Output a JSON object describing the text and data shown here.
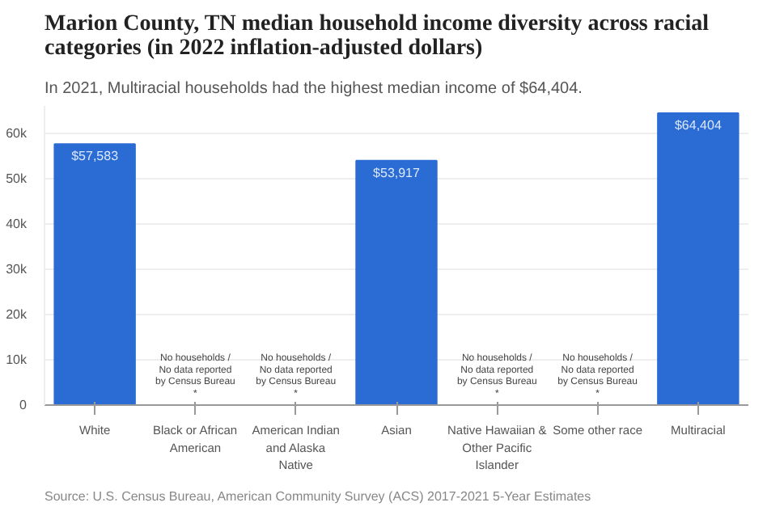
{
  "chart_data": {
    "type": "bar",
    "title": "Marion County, TN median household income diversity across racial categories (in 2022 inflation-adjusted dollars)",
    "subtitle": "In 2021, Multiracial households had the highest median income of $64,404.",
    "categories": [
      "White",
      "Black or African American",
      "American Indian and Alaska Native",
      "Asian",
      "Native Hawaiian & Other Pacific Islander",
      "Some other race",
      "Multiracial"
    ],
    "values": [
      57583,
      null,
      null,
      53917,
      null,
      null,
      64404
    ],
    "value_labels": [
      "$57,583",
      null,
      null,
      "$53,917",
      null,
      null,
      "$64,404"
    ],
    "color": "#2a6bd4",
    "ylim": [
      0,
      66000
    ],
    "yticks": [
      0,
      {
        "value": 10000,
        "label": "10k"
      },
      {
        "value": 20000,
        "label": "20k"
      },
      {
        "value": 30000,
        "label": "30k"
      },
      {
        "value": 40000,
        "label": "40k"
      },
      {
        "value": 50000,
        "label": "50k"
      },
      {
        "value": 60000,
        "label": "60k"
      }
    ],
    "grid": "y",
    "annotations": [
      "No households / No data reported by Census Bureau *",
      "No households / No data reported by Census Bureau *",
      "No households / No data reported by Census Bureau *",
      "No households / No data reported by Census Bureau *",
      "Source: U.S. Census Bureau, American Community Survey (ACS) 2017-2021 5-Year Estimates"
    ]
  }
}
